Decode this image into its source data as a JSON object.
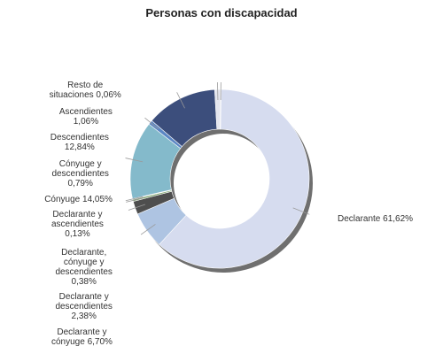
{
  "chart_data": {
    "type": "pie",
    "donut": true,
    "title": "Personas con discapacidad",
    "legend": "none",
    "slices": [
      {
        "name": "Declarante",
        "value": 61.62,
        "label": [
          "Declarante 61,62%"
        ],
        "color": "#d6dcef"
      },
      {
        "name": "Declarante y cónyuge",
        "value": 6.7,
        "label": [
          "Declarante y",
          "cónyuge 6,70%"
        ],
        "color": "#aec4e2"
      },
      {
        "name": "Declarante y descendientes",
        "value": 2.38,
        "label": [
          "Declarante y",
          "descendientes",
          "2,38%"
        ],
        "color": "#4e4e4e"
      },
      {
        "name": "Declarante, cónyuge y descendientes",
        "value": 0.38,
        "label": [
          "Declarante,",
          "cónyuge y",
          "descendientes",
          "0,38%"
        ],
        "color": "#7fa46f"
      },
      {
        "name": "Declarante y ascendientes",
        "value": 0.13,
        "label": [
          "Declarante y",
          "ascendientes",
          "0,13%"
        ],
        "color": "#c9c9c9"
      },
      {
        "name": "Cónyuge",
        "value": 14.05,
        "label": [
          "Cónyuge 14,05%"
        ],
        "color": "#84bacb"
      },
      {
        "name": "Cónyuge y descendientes",
        "value": 0.79,
        "label": [
          "Cónyuge y",
          "descendientes",
          "0,79%"
        ],
        "color": "#5b86c4"
      },
      {
        "name": "Descendientes",
        "value": 12.84,
        "label": [
          "Descendientes",
          "12,84%"
        ],
        "color": "#3c4e7c"
      },
      {
        "name": "Ascendientes",
        "value": 1.06,
        "label": [
          "Ascendientes",
          "1,06%"
        ],
        "color": "#e4e6ef"
      },
      {
        "name": "Resto de situaciones",
        "value": 0.06,
        "label": [
          "Resto de",
          "situaciones 0,06%"
        ],
        "color": "#8d8d8d"
      }
    ]
  }
}
